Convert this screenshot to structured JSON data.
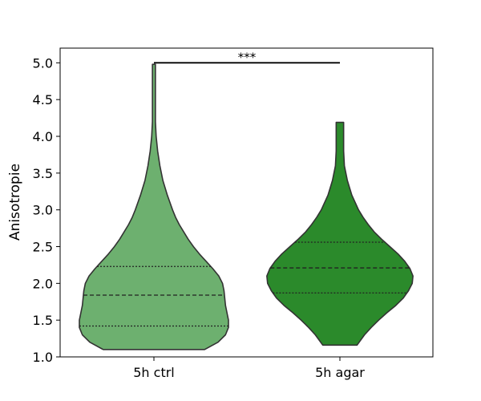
{
  "chart_data": {
    "type": "violin",
    "ylabel": "Anisotropie",
    "ylim": [
      1.0,
      5.2
    ],
    "yticks": [
      1.0,
      1.5,
      2.0,
      2.5,
      3.0,
      3.5,
      4.0,
      4.5,
      5.0
    ],
    "ytick_labels": [
      "1.0",
      "1.5",
      "2.0",
      "2.5",
      "3.0",
      "3.5",
      "4.0",
      "4.5",
      "5.0"
    ],
    "categories": [
      "5h ctrl",
      "5h agar"
    ],
    "grid": false,
    "series": [
      {
        "color": "#6db06f",
        "min": 1.1,
        "max": 4.98,
        "q1": 1.42,
        "median": 1.84,
        "q3": 2.23,
        "density": [
          [
            1.1,
            0.68
          ],
          [
            1.2,
            0.86
          ],
          [
            1.3,
            0.96
          ],
          [
            1.4,
            1.0
          ],
          [
            1.5,
            1.0
          ],
          [
            1.6,
            0.98
          ],
          [
            1.7,
            0.96
          ],
          [
            1.8,
            0.95
          ],
          [
            1.9,
            0.94
          ],
          [
            2.0,
            0.92
          ],
          [
            2.1,
            0.87
          ],
          [
            2.2,
            0.79
          ],
          [
            2.3,
            0.7
          ],
          [
            2.4,
            0.61
          ],
          [
            2.5,
            0.53
          ],
          [
            2.6,
            0.46
          ],
          [
            2.7,
            0.4
          ],
          [
            2.8,
            0.34
          ],
          [
            2.9,
            0.29
          ],
          [
            3.0,
            0.25
          ],
          [
            3.2,
            0.18
          ],
          [
            3.4,
            0.12
          ],
          [
            3.6,
            0.08
          ],
          [
            3.8,
            0.05
          ],
          [
            4.0,
            0.03
          ],
          [
            4.2,
            0.02
          ],
          [
            4.5,
            0.02
          ],
          [
            4.8,
            0.02
          ],
          [
            4.98,
            0.02
          ]
        ]
      },
      {
        "color": "#2b8a2b",
        "min": 1.16,
        "max": 4.19,
        "q1": 1.87,
        "median": 2.21,
        "q3": 2.56,
        "density": [
          [
            1.16,
            0.23
          ],
          [
            1.3,
            0.33
          ],
          [
            1.4,
            0.42
          ],
          [
            1.5,
            0.52
          ],
          [
            1.6,
            0.63
          ],
          [
            1.7,
            0.75
          ],
          [
            1.8,
            0.85
          ],
          [
            1.9,
            0.92
          ],
          [
            2.0,
            0.97
          ],
          [
            2.1,
            0.98
          ],
          [
            2.2,
            0.94
          ],
          [
            2.3,
            0.87
          ],
          [
            2.4,
            0.78
          ],
          [
            2.5,
            0.67
          ],
          [
            2.6,
            0.56
          ],
          [
            2.7,
            0.46
          ],
          [
            2.8,
            0.38
          ],
          [
            2.9,
            0.31
          ],
          [
            3.0,
            0.25
          ],
          [
            3.2,
            0.16
          ],
          [
            3.4,
            0.1
          ],
          [
            3.6,
            0.06
          ],
          [
            3.8,
            0.05
          ],
          [
            4.0,
            0.05
          ],
          [
            4.19,
            0.05
          ]
        ]
      }
    ],
    "annotation": {
      "text": "***",
      "between": [
        "5h ctrl",
        "5h agar"
      ],
      "y": 5.0
    }
  }
}
